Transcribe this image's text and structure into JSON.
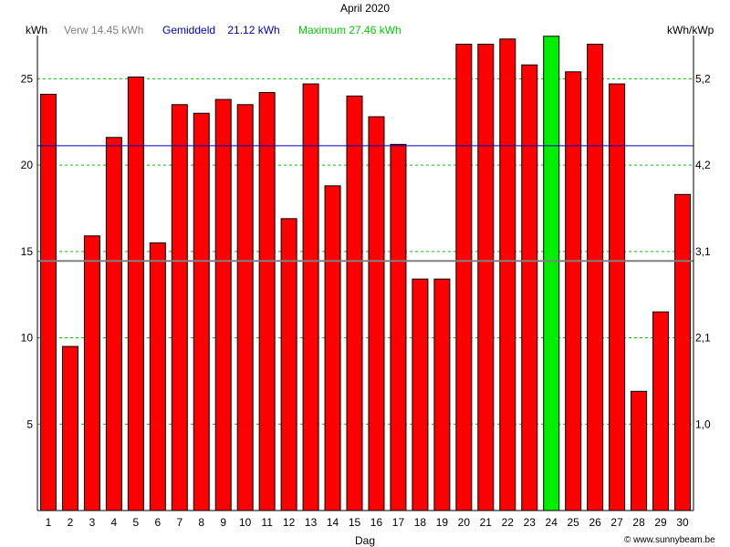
{
  "chart_data": {
    "type": "bar",
    "title": "April 2020",
    "ylabel_left": "kWh",
    "ylabel_right": "kWh/kWp",
    "xlabel": "Dag",
    "legend": {
      "expected": "Verw 14.45 kWh",
      "average": "Gemiddeld    21.12 kWh",
      "maximum": "Maximum 27.46 kWh"
    },
    "expected_value": 14.45,
    "average_value": 21.12,
    "max_value": 27.46,
    "max_day": "24",
    "categories": [
      "1",
      "2",
      "3",
      "4",
      "5",
      "6",
      "7",
      "8",
      "9",
      "10",
      "11",
      "12",
      "13",
      "14",
      "15",
      "16",
      "17",
      "18",
      "19",
      "20",
      "21",
      "22",
      "23",
      "24",
      "25",
      "26",
      "27",
      "28",
      "29",
      "30"
    ],
    "values": [
      24.1,
      9.5,
      15.9,
      21.6,
      25.1,
      15.5,
      23.5,
      23.0,
      23.8,
      23.5,
      24.2,
      16.9,
      24.7,
      18.8,
      24.0,
      22.8,
      21.2,
      13.4,
      13.4,
      27.0,
      27.0,
      27.3,
      25.8,
      27.46,
      25.4,
      27.0,
      24.7,
      6.9,
      11.5,
      18.3
    ],
    "ylim": [
      0,
      27.5
    ],
    "yticks_left": [
      "5",
      "10",
      "15",
      "20",
      "25"
    ],
    "yticks_left_values": [
      5,
      10,
      15,
      20,
      25
    ],
    "yticks_right": [
      "1,0",
      "2,1",
      "3,1",
      "4,2",
      "5,2"
    ],
    "grid": "horizontal dashed",
    "colors": {
      "bar": "#ff0000",
      "max_bar": "#00ee00",
      "average_line": "#0000c0",
      "expected_line": "#808080",
      "grid": "#00cc00",
      "expected_text": "#808080",
      "average_text": "#0000c0",
      "maximum_text": "#00cc00"
    }
  },
  "footer": {
    "copyright_icon": "copyright-icon",
    "credit": "www.sunnybeam.be"
  }
}
